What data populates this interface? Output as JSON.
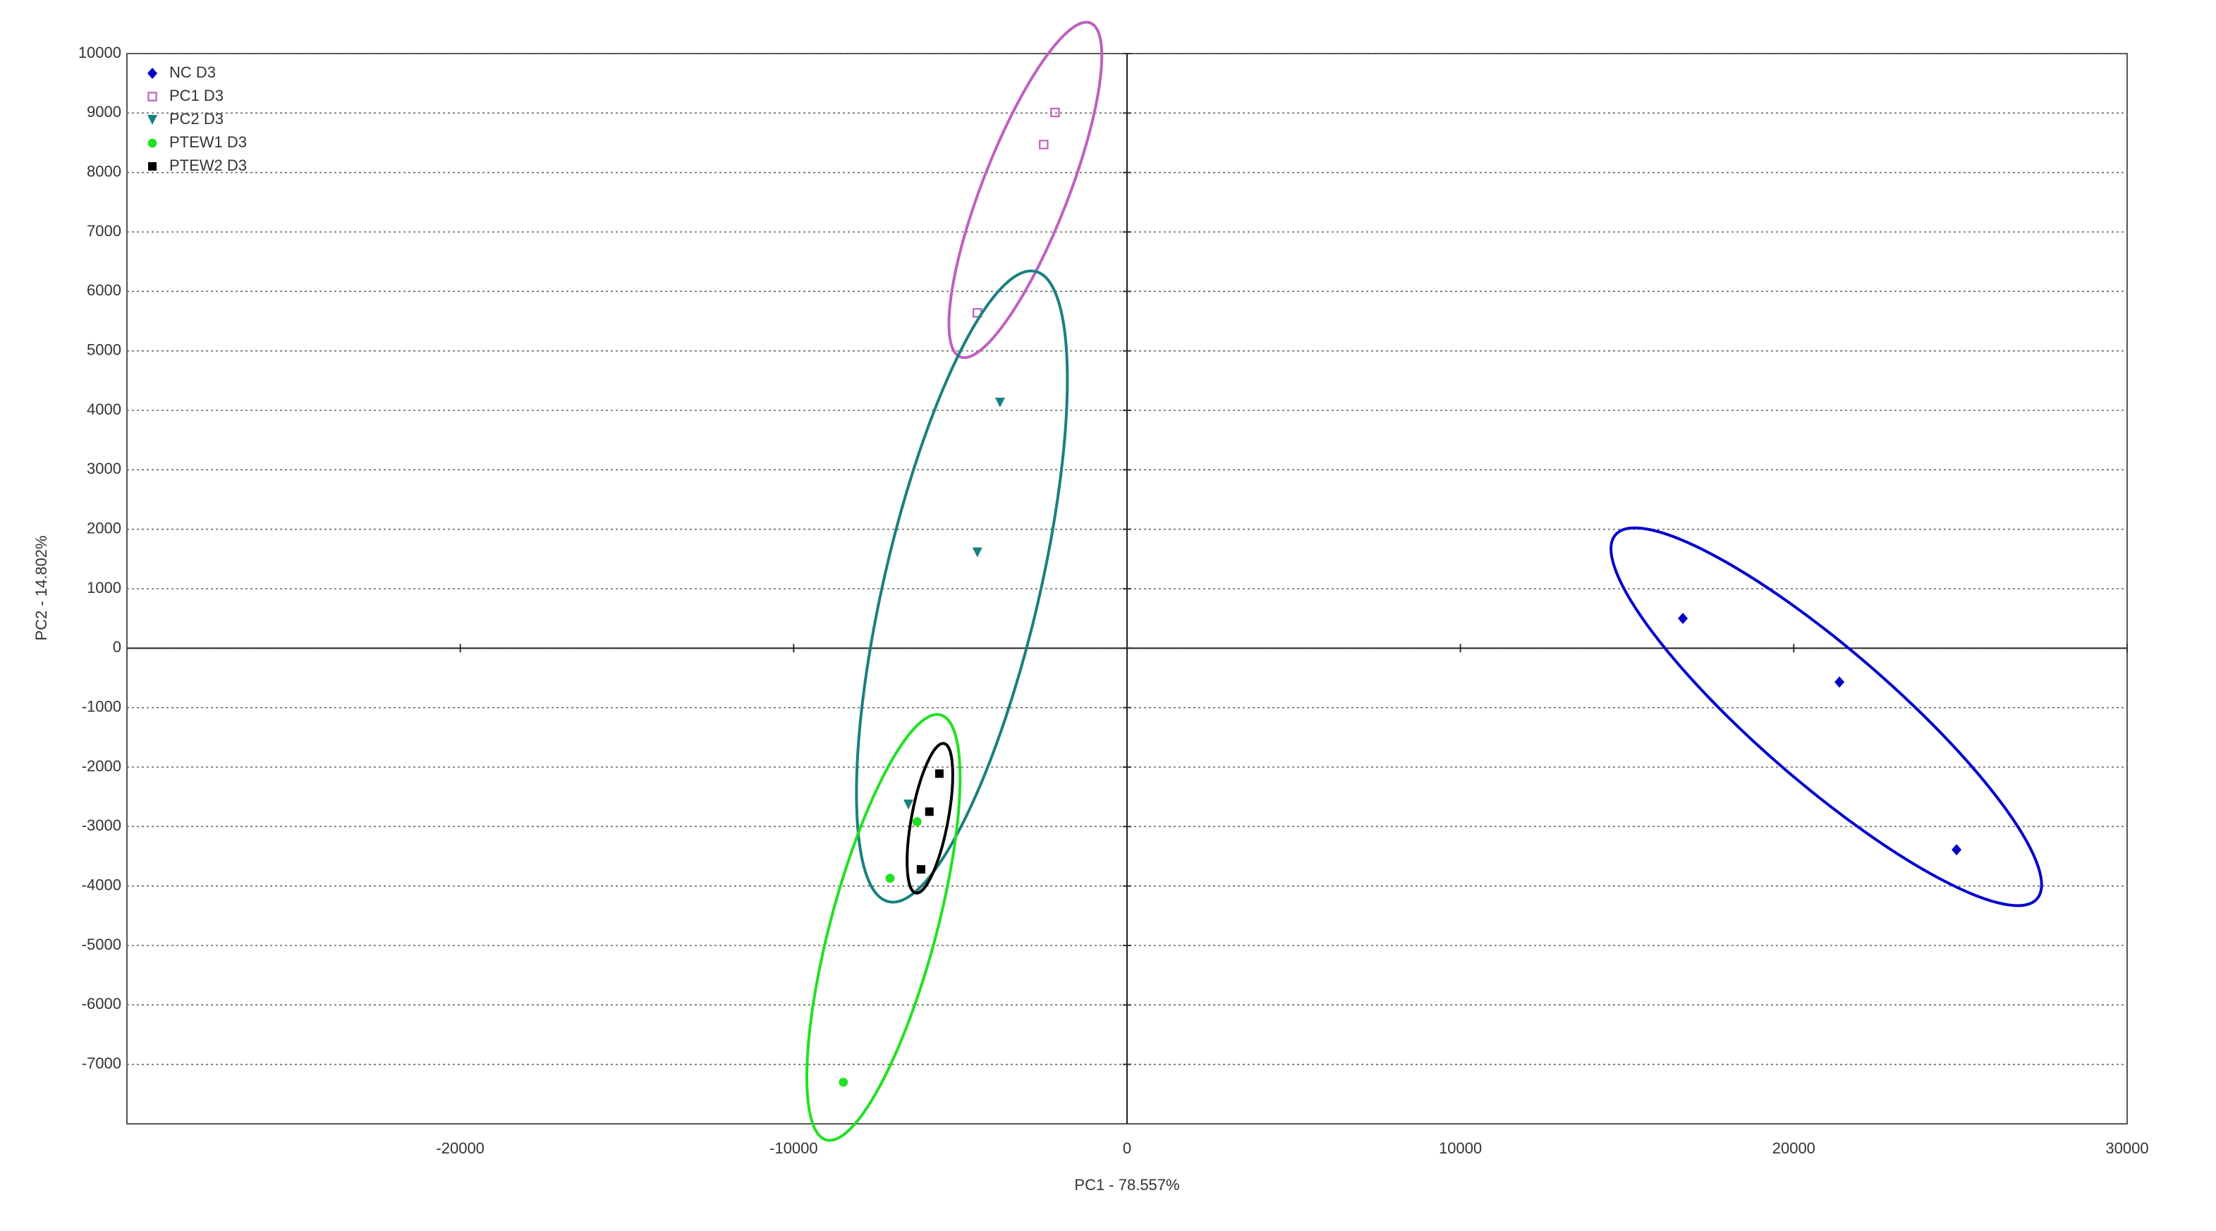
{
  "chart_data": {
    "type": "scatter",
    "x_label": "PC1 - 78.557%",
    "y_label": "PC2 - 14.802%",
    "xlim": [
      -30000,
      30000
    ],
    "ylim": [
      -8000,
      10000
    ],
    "xticks": [
      -20000,
      -10000,
      0,
      10000,
      20000,
      30000
    ],
    "yticks": [
      -7000,
      -6000,
      -5000,
      -4000,
      -3000,
      -2000,
      -1000,
      0,
      1000,
      2000,
      3000,
      4000,
      5000,
      6000,
      7000,
      8000,
      9000,
      10000
    ],
    "grid": true,
    "legend": "upper-left",
    "series": [
      {
        "name": "NC D3",
        "color": "#0000cc",
        "marker": "diamond",
        "x": [
          16673,
          21370,
          24883
        ],
        "values": [
          500,
          -570,
          -3390
        ]
      },
      {
        "name": "PC1 D3",
        "color": "#c060c0",
        "marker": "open-square",
        "x": [
          -2160,
          -2500,
          -4490
        ],
        "values": [
          9010,
          8470,
          5640
        ]
      },
      {
        "name": "PC2 D3",
        "color": "#1a7f7f",
        "marker": "triangle-down",
        "x": [
          -3810,
          -4490,
          -6560
        ],
        "values": [
          4130,
          1610,
          -2630
        ]
      },
      {
        "name": "PTEW1 D3",
        "color": "#22e022",
        "marker": "circle",
        "x": [
          -6300,
          -7110,
          -8510
        ],
        "values": [
          -2920,
          -3870,
          -7300
        ]
      },
      {
        "name": "PTEW2 D3",
        "color": "#000000",
        "marker": "square",
        "x": [
          -5630,
          -5930,
          -6180
        ],
        "values": [
          -2110,
          -2750,
          -3720
        ]
      }
    ]
  }
}
